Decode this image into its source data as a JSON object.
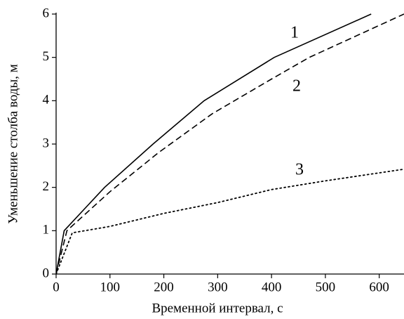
{
  "chart_data": {
    "type": "line",
    "x_label": "Временной интервал, с",
    "y_label": "Уменьшение столба воды, м",
    "xlim": [
      0,
      646
    ],
    "ylim": [
      0,
      6
    ],
    "xticks": [
      0,
      100,
      200,
      300,
      400,
      500,
      600
    ],
    "yticks": [
      0,
      1,
      2,
      3,
      4,
      5,
      6
    ],
    "grid": false,
    "series": [
      {
        "name": "1",
        "color": "#000000",
        "style": "solid",
        "x": [
          0,
          15,
          90,
          180,
          275,
          405,
          585
        ],
        "values": [
          0,
          1,
          2,
          3,
          4,
          5,
          6
        ]
      },
      {
        "name": "2",
        "color": "#000000",
        "style": "dashed",
        "x": [
          0,
          20,
          100,
          190,
          290,
          400,
          470,
          646
        ],
        "values": [
          0,
          1,
          1.9,
          2.8,
          3.7,
          4.5,
          5,
          6
        ]
      },
      {
        "name": "3",
        "color": "#000000",
        "style": "dotted",
        "x": [
          0,
          30,
          100,
          200,
          300,
          400,
          500,
          646
        ],
        "values": [
          0,
          0.95,
          1.1,
          1.4,
          1.65,
          1.95,
          2.15,
          2.42
        ]
      }
    ]
  }
}
